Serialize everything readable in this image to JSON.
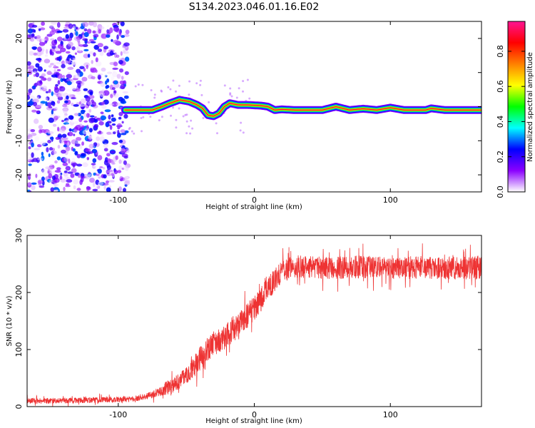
{
  "figure": {
    "title": "S134.2023.046.01.16.E02"
  },
  "chart_data": [
    {
      "type": "heatmap",
      "name": "spectrogram",
      "xlabel": "Height of straight line (km)",
      "ylabel": "Frequency (Hz)",
      "xlim": [
        -167,
        167
      ],
      "ylim": [
        -25,
        25
      ],
      "xticks": [
        -100,
        0,
        100
      ],
      "xtick_labels": [
        "-100",
        "0",
        "100"
      ],
      "yticks": [
        -20,
        -10,
        0,
        10,
        20
      ],
      "ytick_labels": [
        "-20",
        "-10",
        "0",
        "10",
        "20"
      ],
      "grid": false,
      "noise_region": {
        "x_from": -167,
        "x_to": -93,
        "amplitude_range": [
          0.0,
          0.3
        ]
      },
      "signal_ridge": {
        "x": [
          -95,
          -85,
          -75,
          -68,
          -62,
          -55,
          -48,
          -42,
          -38,
          -34,
          -30,
          -26,
          -22,
          -18,
          -12,
          -5,
          0,
          5,
          10,
          15,
          20,
          30,
          40,
          50,
          60,
          70,
          80,
          90,
          100,
          110,
          120,
          126,
          130,
          140,
          150,
          160,
          167
        ],
        "frequency_hz": [
          -1,
          -1,
          -1,
          0,
          1,
          2,
          1.5,
          0.5,
          -0.5,
          -2.5,
          -2.8,
          -2,
          0,
          1,
          0.5,
          0.5,
          0.4,
          0.3,
          0,
          -1,
          -0.8,
          -1,
          -1,
          -1,
          0,
          -1,
          -0.6,
          -1,
          -0.3,
          -1,
          -1,
          -1,
          -0.5,
          -1,
          -1,
          -1,
          -1
        ],
        "peak_amplitude": 0.9
      },
      "colorbar": {
        "label": "Normalized spectral amplitude",
        "range": [
          0.0,
          0.97
        ],
        "ticks": [
          0.0,
          0.2,
          0.4,
          0.6,
          0.8
        ],
        "tick_labels": [
          "0.0",
          "0.2",
          "0.4",
          "0.6",
          "0.8"
        ],
        "colors": [
          "#ffffff",
          "#8b00ff",
          "#0000ff",
          "#00ffff",
          "#00ff00",
          "#ffff00",
          "#ff8000",
          "#ff0000",
          "#ff1493"
        ]
      }
    },
    {
      "type": "line",
      "name": "snr",
      "xlabel": "Height of straight line (km)",
      "ylabel": "SNR (10 * v/v)",
      "xlim": [
        -167,
        167
      ],
      "ylim": [
        0,
        300
      ],
      "xticks": [
        -100,
        0,
        100
      ],
      "xtick_labels": [
        "-100",
        "0",
        "100"
      ],
      "yticks": [
        0,
        100,
        200,
        300
      ],
      "ytick_labels": [
        "0",
        "100",
        "200",
        "300"
      ],
      "grid": false,
      "line_color": "#ee3333",
      "x": [
        -167,
        -150,
        -130,
        -110,
        -90,
        -80,
        -70,
        -65,
        -60,
        -55,
        -50,
        -45,
        -40,
        -35,
        -30,
        -25,
        -20,
        -15,
        -10,
        -5,
        0,
        5,
        10,
        15,
        20,
        25,
        30,
        40,
        60,
        80,
        100,
        120,
        140,
        167
      ],
      "y": [
        10,
        10,
        11,
        12,
        13,
        18,
        25,
        32,
        38,
        45,
        55,
        68,
        85,
        100,
        110,
        118,
        125,
        135,
        148,
        160,
        172,
        188,
        205,
        222,
        235,
        242,
        245,
        245,
        243,
        245,
        243,
        244,
        242,
        244
      ],
      "noise_amplitude": [
        5,
        5,
        5,
        5,
        5,
        6,
        8,
        12,
        14,
        14,
        15,
        18,
        22,
        22,
        22,
        22,
        22,
        22,
        22,
        22,
        22,
        22,
        22,
        20,
        20,
        20,
        20,
        20,
        20,
        20,
        20,
        20,
        20,
        20
      ]
    }
  ]
}
